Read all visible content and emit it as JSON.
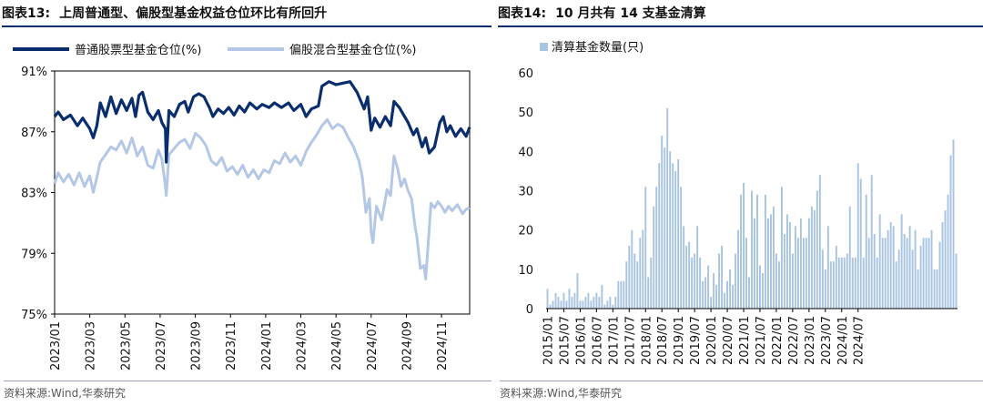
{
  "left": {
    "label": "图表13:",
    "title": "上周普通型、偏股型基金权益仓位环比有所回升",
    "source": "资料来源:Wind,华泰研究",
    "chart_data": {
      "type": "line",
      "title": "上周普通型、偏股型基金权益仓位环比有所回升",
      "ylim": [
        75,
        91
      ],
      "yticks": [
        "91%",
        "87%",
        "83%",
        "79%",
        "75%"
      ],
      "ytick_values": [
        91,
        87,
        83,
        79,
        75
      ],
      "xticks": [
        "2023/01",
        "2023/03",
        "2023/05",
        "2023/07",
        "2023/09",
        "2023/11",
        "2024/01",
        "2024/03",
        "2024/05",
        "2024/07",
        "2024/09",
        "2024/11"
      ],
      "xlim_months": [
        0,
        23.6
      ],
      "series": [
        {
          "name": "普通股票型基金仓位(%)",
          "color": "#0a2d6e",
          "points": [
            [
              0,
              88.0
            ],
            [
              0.2,
              88.3
            ],
            [
              0.5,
              87.8
            ],
            [
              0.9,
              88.1
            ],
            [
              1.3,
              87.4
            ],
            [
              1.6,
              87.9
            ],
            [
              2.0,
              87.2
            ],
            [
              2.2,
              86.6
            ],
            [
              2.4,
              87.4
            ],
            [
              2.6,
              88.9
            ],
            [
              2.9,
              88.0
            ],
            [
              3.2,
              89.3
            ],
            [
              3.5,
              88.2
            ],
            [
              3.8,
              89.1
            ],
            [
              4.1,
              88.4
            ],
            [
              4.4,
              89.2
            ],
            [
              4.6,
              88.0
            ],
            [
              4.8,
              89.4
            ],
            [
              5.0,
              89.6
            ],
            [
              5.3,
              88.3
            ],
            [
              5.6,
              87.8
            ],
            [
              5.9,
              88.4
            ],
            [
              6.1,
              87.6
            ],
            [
              6.3,
              87.2
            ],
            [
              6.35,
              85.0
            ],
            [
              6.5,
              88.4
            ],
            [
              6.8,
              88.0
            ],
            [
              7.1,
              88.8
            ],
            [
              7.4,
              89.0
            ],
            [
              7.6,
              88.3
            ],
            [
              7.9,
              89.3
            ],
            [
              8.2,
              89.5
            ],
            [
              8.5,
              89.3
            ],
            [
              8.8,
              88.6
            ],
            [
              9.0,
              88.0
            ],
            [
              9.3,
              88.5
            ],
            [
              9.6,
              88.2
            ],
            [
              9.9,
              88.6
            ],
            [
              10.2,
              88.1
            ],
            [
              10.5,
              88.7
            ],
            [
              10.8,
              88.3
            ],
            [
              11.1,
              88.9
            ],
            [
              11.5,
              88.5
            ],
            [
              11.8,
              88.8
            ],
            [
              12.2,
              88.6
            ],
            [
              12.5,
              88.9
            ],
            [
              12.9,
              88.6
            ],
            [
              13.3,
              88.9
            ],
            [
              13.6,
              88.4
            ],
            [
              14.0,
              88.8
            ],
            [
              14.3,
              88.0
            ],
            [
              14.6,
              88.5
            ],
            [
              15.0,
              88.7
            ],
            [
              15.2,
              90.0
            ],
            [
              15.6,
              90.3
            ],
            [
              16.0,
              90.1
            ],
            [
              16.4,
              90.2
            ],
            [
              16.8,
              90.3
            ],
            [
              17.2,
              89.6
            ],
            [
              17.6,
              88.5
            ],
            [
              17.8,
              89.3
            ],
            [
              18.0,
              87.1
            ],
            [
              18.2,
              87.9
            ],
            [
              18.5,
              87.3
            ],
            [
              18.8,
              88.0
            ],
            [
              19.1,
              87.4
            ],
            [
              19.3,
              89.0
            ],
            [
              19.6,
              88.6
            ],
            [
              19.9,
              88.0
            ],
            [
              20.1,
              87.6
            ],
            [
              20.4,
              86.8
            ],
            [
              20.6,
              87.2
            ],
            [
              20.9,
              86.0
            ],
            [
              21.1,
              86.6
            ],
            [
              21.3,
              85.6
            ],
            [
              21.6,
              86.0
            ],
            [
              21.9,
              87.6
            ],
            [
              22.1,
              88.0
            ],
            [
              22.3,
              87.0
            ],
            [
              22.5,
              87.4
            ],
            [
              22.8,
              86.7
            ],
            [
              23.1,
              87.2
            ],
            [
              23.4,
              86.7
            ],
            [
              23.6,
              87.3
            ]
          ]
        },
        {
          "name": "偏股混合型基金仓位(%)",
          "color": "#b4c7e6",
          "points": [
            [
              0,
              83.6
            ],
            [
              0.2,
              84.3
            ],
            [
              0.5,
              83.7
            ],
            [
              0.8,
              84.2
            ],
            [
              1.1,
              83.5
            ],
            [
              1.4,
              84.3
            ],
            [
              1.7,
              83.4
            ],
            [
              2.0,
              84.1
            ],
            [
              2.2,
              83.0
            ],
            [
              2.4,
              84.0
            ],
            [
              2.6,
              85.0
            ],
            [
              2.9,
              85.5
            ],
            [
              3.2,
              86.0
            ],
            [
              3.5,
              85.8
            ],
            [
              3.8,
              86.4
            ],
            [
              4.1,
              85.6
            ],
            [
              4.4,
              86.6
            ],
            [
              4.7,
              85.4
            ],
            [
              5.0,
              86.0
            ],
            [
              5.3,
              84.8
            ],
            [
              5.6,
              84.6
            ],
            [
              5.9,
              85.8
            ],
            [
              6.1,
              85.2
            ],
            [
              6.3,
              83.4
            ],
            [
              6.35,
              82.8
            ],
            [
              6.5,
              85.5
            ],
            [
              6.8,
              85.9
            ],
            [
              7.1,
              86.3
            ],
            [
              7.4,
              86.5
            ],
            [
              7.7,
              85.9
            ],
            [
              8.0,
              86.9
            ],
            [
              8.3,
              86.6
            ],
            [
              8.6,
              86.1
            ],
            [
              8.9,
              85.1
            ],
            [
              9.2,
              84.8
            ],
            [
              9.5,
              85.3
            ],
            [
              9.8,
              84.4
            ],
            [
              10.1,
              84.7
            ],
            [
              10.4,
              84.2
            ],
            [
              10.7,
              84.8
            ],
            [
              11.0,
              84.0
            ],
            [
              11.3,
              84.5
            ],
            [
              11.6,
              83.9
            ],
            [
              11.9,
              84.5
            ],
            [
              12.2,
              84.3
            ],
            [
              12.5,
              85.1
            ],
            [
              12.8,
              84.9
            ],
            [
              13.1,
              85.6
            ],
            [
              13.4,
              85.0
            ],
            [
              13.7,
              85.4
            ],
            [
              14.0,
              84.8
            ],
            [
              14.3,
              85.7
            ],
            [
              14.6,
              86.3
            ],
            [
              14.9,
              86.8
            ],
            [
              15.2,
              87.4
            ],
            [
              15.5,
              87.8
            ],
            [
              15.8,
              87.2
            ],
            [
              16.1,
              87.5
            ],
            [
              16.4,
              87.3
            ],
            [
              16.7,
              86.6
            ],
            [
              17.0,
              86.0
            ],
            [
              17.3,
              85.1
            ],
            [
              17.5,
              84.0
            ],
            [
              17.7,
              81.7
            ],
            [
              17.9,
              82.6
            ],
            [
              18.0,
              80.4
            ],
            [
              18.1,
              79.7
            ],
            [
              18.3,
              82.1
            ],
            [
              18.6,
              81.2
            ],
            [
              18.9,
              83.2
            ],
            [
              19.1,
              82.8
            ],
            [
              19.3,
              85.4
            ],
            [
              19.5,
              84.6
            ],
            [
              19.7,
              83.4
            ],
            [
              19.9,
              83.9
            ],
            [
              20.1,
              83.1
            ],
            [
              20.3,
              82.6
            ],
            [
              20.5,
              80.7
            ],
            [
              20.6,
              80.1
            ],
            [
              20.8,
              78.0
            ],
            [
              21.0,
              78.2
            ],
            [
              21.1,
              77.3
            ],
            [
              21.3,
              80.6
            ],
            [
              21.4,
              82.3
            ],
            [
              21.6,
              82.0
            ],
            [
              21.8,
              82.4
            ],
            [
              22.0,
              82.1
            ],
            [
              22.2,
              81.7
            ],
            [
              22.4,
              82.1
            ],
            [
              22.6,
              81.8
            ],
            [
              22.9,
              82.2
            ],
            [
              23.2,
              81.6
            ],
            [
              23.4,
              81.9
            ],
            [
              23.6,
              82.0
            ]
          ]
        }
      ]
    }
  },
  "right": {
    "label": "图表14:",
    "title": "10 月共有 14 支基金清算",
    "source": "资料来源:Wind,华泰研究",
    "chart_data": {
      "type": "bar",
      "title": "10 月共有 14 支基金清算",
      "legend": "清算基金数量(只)",
      "color": "#a8c4e0",
      "start": "2015/01",
      "ylim": [
        0,
        60
      ],
      "yticks": [
        0,
        10,
        20,
        30,
        40,
        50,
        60
      ],
      "xticks": [
        "2015/01",
        "2015/07",
        "2016/01",
        "2016/07",
        "2017/01",
        "2017/07",
        "2018/01",
        "2018/07",
        "2019/01",
        "2019/07",
        "2020/01",
        "2020/07",
        "2021/01",
        "2021/07",
        "2022/01",
        "2022/07",
        "2023/01",
        "2023/07",
        "2024/01",
        "2024/07"
      ],
      "values": [
        5,
        1,
        2,
        4,
        3,
        2,
        4,
        2,
        5,
        3,
        4,
        9,
        2,
        2,
        3,
        4,
        2,
        3,
        4,
        3,
        6,
        1,
        2,
        3,
        1,
        3,
        7,
        7,
        7,
        12,
        16,
        20,
        14,
        12,
        18,
        20,
        31,
        8,
        13,
        26,
        31,
        37,
        44,
        41,
        51,
        40,
        37,
        35,
        38,
        31,
        21,
        16,
        17,
        13,
        14,
        21,
        13,
        7,
        8,
        11,
        3,
        9,
        6,
        14,
        16,
        4,
        7,
        10,
        6,
        14,
        20,
        29,
        32,
        18,
        8,
        30,
        23,
        29,
        11,
        9,
        29,
        23,
        24,
        26,
        14,
        12,
        31,
        19,
        24,
        22,
        14,
        21,
        18,
        23,
        18,
        18,
        23,
        26,
        25,
        30,
        34,
        15,
        10,
        21,
        12,
        12,
        16,
        13,
        13,
        13,
        14,
        26,
        13,
        13,
        37,
        33,
        13,
        29,
        18,
        34,
        19,
        13,
        24,
        18,
        18,
        20,
        22,
        21,
        12,
        15,
        24,
        19,
        18,
        21,
        15,
        20,
        10,
        16,
        18,
        18,
        18,
        20,
        10,
        10,
        17,
        22,
        25,
        29,
        39,
        43,
        14
      ]
    }
  }
}
